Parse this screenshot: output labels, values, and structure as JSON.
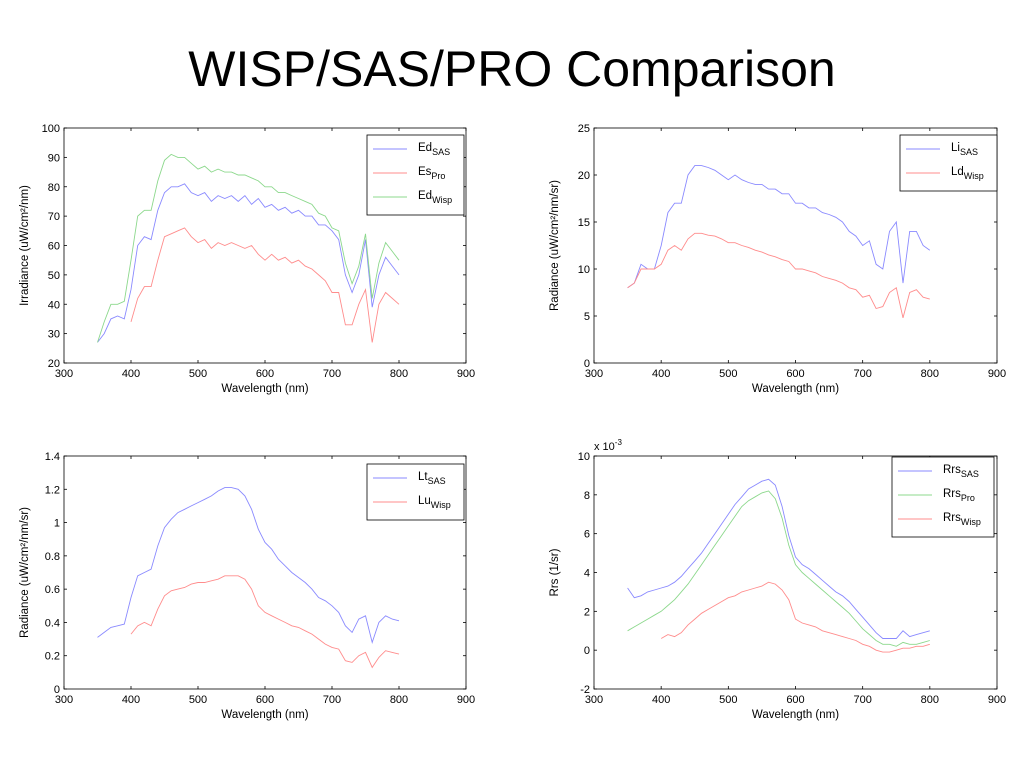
{
  "slide": {
    "title": "WISP/SAS/PRO Comparison"
  },
  "chart_data": [
    {
      "type": "line",
      "xlabel": "Wavelength (nm)",
      "ylabel": "Irradiance (uW/cm²/nm)",
      "xlim": [
        300,
        900
      ],
      "ylim": [
        20,
        100
      ],
      "xticks": [
        300,
        400,
        500,
        600,
        700,
        800,
        900
      ],
      "yticks": [
        20,
        30,
        40,
        50,
        60,
        70,
        80,
        90,
        100
      ],
      "legend_position": "top-right",
      "series": [
        {
          "name": "Ed",
          "sub": "SAS",
          "color": "#8a8aff",
          "x": [
            350,
            360,
            370,
            380,
            390,
            400,
            410,
            420,
            430,
            440,
            450,
            460,
            470,
            480,
            490,
            500,
            510,
            520,
            530,
            540,
            550,
            560,
            570,
            580,
            590,
            600,
            610,
            620,
            630,
            640,
            650,
            660,
            670,
            680,
            690,
            700,
            710,
            720,
            730,
            740,
            750,
            760,
            770,
            780,
            790,
            800
          ],
          "y": [
            27,
            30,
            35,
            36,
            35,
            45,
            60,
            63,
            62,
            72,
            78,
            80,
            80,
            81,
            78,
            77,
            78,
            75,
            77,
            76,
            77,
            75,
            77,
            74,
            76,
            73,
            74,
            72,
            73,
            71,
            72,
            70,
            70,
            67,
            67,
            65,
            62,
            50,
            44,
            50,
            62,
            39,
            50,
            56,
            53,
            50
          ]
        },
        {
          "name": "Es",
          "sub": "Pro",
          "color": "#ff8c8c",
          "x": [
            400,
            410,
            420,
            430,
            440,
            450,
            460,
            470,
            480,
            490,
            500,
            510,
            520,
            530,
            540,
            550,
            560,
            570,
            580,
            590,
            600,
            610,
            620,
            630,
            640,
            650,
            660,
            670,
            680,
            690,
            700,
            710,
            720,
            730,
            740,
            750,
            760,
            770,
            780,
            790,
            800
          ],
          "y": [
            34,
            42,
            46,
            46,
            55,
            63,
            64,
            65,
            66,
            63,
            61,
            62,
            59,
            61,
            60,
            61,
            60,
            59,
            60,
            57,
            55,
            57,
            55,
            56,
            54,
            55,
            53,
            52,
            50,
            48,
            44,
            44,
            33,
            33,
            40,
            45,
            27,
            40,
            44,
            42,
            40
          ]
        },
        {
          "name": "Ed",
          "sub": "Wisp",
          "color": "#8cd88c",
          "x": [
            350,
            360,
            370,
            380,
            390,
            400,
            410,
            420,
            430,
            440,
            450,
            460,
            470,
            480,
            490,
            500,
            510,
            520,
            530,
            540,
            550,
            560,
            570,
            580,
            590,
            600,
            610,
            620,
            630,
            640,
            650,
            660,
            670,
            680,
            690,
            700,
            710,
            720,
            730,
            740,
            750,
            760,
            770,
            780,
            790,
            800
          ],
          "y": [
            27,
            34,
            40,
            40,
            41,
            55,
            70,
            72,
            72,
            82,
            89,
            91,
            90,
            90,
            88,
            86,
            87,
            85,
            86,
            85,
            85,
            84,
            84,
            83,
            82,
            80,
            80,
            78,
            78,
            77,
            76,
            75,
            74,
            71,
            70,
            66,
            65,
            54,
            47,
            53,
            64,
            42,
            54,
            61,
            58,
            55
          ]
        }
      ]
    },
    {
      "type": "line",
      "xlabel": "Wavelength (nm)",
      "ylabel": "Radiance (uW/cm²/nm/sr)",
      "xlim": [
        300,
        900
      ],
      "ylim": [
        0,
        25
      ],
      "xticks": [
        300,
        400,
        500,
        600,
        700,
        800,
        900
      ],
      "yticks": [
        0,
        5,
        10,
        15,
        20,
        25
      ],
      "legend_position": "top-right",
      "series": [
        {
          "name": "Li",
          "sub": "SAS",
          "color": "#8a8aff",
          "x": [
            350,
            360,
            370,
            380,
            390,
            400,
            410,
            420,
            430,
            440,
            450,
            460,
            470,
            480,
            490,
            500,
            510,
            520,
            530,
            540,
            550,
            560,
            570,
            580,
            590,
            600,
            610,
            620,
            630,
            640,
            650,
            660,
            670,
            680,
            690,
            700,
            710,
            720,
            730,
            740,
            750,
            760,
            770,
            780,
            790,
            800
          ],
          "y": [
            8,
            8.5,
            10.5,
            10,
            10,
            12.5,
            16,
            17,
            17,
            20,
            21,
            21,
            20.8,
            20.5,
            20,
            19.5,
            20,
            19.5,
            19.2,
            19,
            19,
            18.5,
            18.5,
            18,
            18,
            17,
            17,
            16.5,
            16.5,
            16,
            15.8,
            15.5,
            15,
            14,
            13.5,
            12.5,
            13,
            10.5,
            10,
            14,
            15,
            8.5,
            14,
            14,
            12.5,
            12
          ]
        },
        {
          "name": "Ld",
          "sub": "Wisp",
          "color": "#ff8c8c",
          "x": [
            350,
            360,
            370,
            380,
            390,
            400,
            410,
            420,
            430,
            440,
            450,
            460,
            470,
            480,
            490,
            500,
            510,
            520,
            530,
            540,
            550,
            560,
            570,
            580,
            590,
            600,
            610,
            620,
            630,
            640,
            650,
            660,
            670,
            680,
            690,
            700,
            710,
            720,
            730,
            740,
            750,
            760,
            770,
            780,
            790,
            800
          ],
          "y": [
            8,
            8.5,
            10,
            10,
            10,
            10.5,
            12,
            12.5,
            12,
            13.2,
            13.8,
            13.8,
            13.6,
            13.5,
            13.2,
            12.8,
            12.8,
            12.5,
            12.3,
            12,
            11.8,
            11.5,
            11.3,
            11,
            10.8,
            10,
            10,
            9.8,
            9.6,
            9.2,
            9,
            8.8,
            8.5,
            8,
            7.8,
            7,
            7.2,
            5.8,
            6,
            7.5,
            8,
            4.8,
            7.5,
            7.8,
            7,
            6.8
          ]
        }
      ]
    },
    {
      "type": "line",
      "xlabel": "Wavelength (nm)",
      "ylabel": "Radiance (uW/cm²/nm/sr)",
      "xlim": [
        300,
        900
      ],
      "ylim": [
        0,
        1.4
      ],
      "xticks": [
        300,
        400,
        500,
        600,
        700,
        800,
        900
      ],
      "yticks": [
        0,
        0.2,
        0.4,
        0.6,
        0.8,
        1,
        1.2,
        1.4
      ],
      "legend_position": "top-right",
      "series": [
        {
          "name": "Lt",
          "sub": "SAS",
          "color": "#8a8aff",
          "x": [
            350,
            360,
            370,
            380,
            390,
            400,
            410,
            420,
            430,
            440,
            450,
            460,
            470,
            480,
            490,
            500,
            510,
            520,
            530,
            540,
            550,
            560,
            570,
            580,
            590,
            600,
            610,
            620,
            630,
            640,
            650,
            660,
            670,
            680,
            690,
            700,
            710,
            720,
            730,
            740,
            750,
            760,
            770,
            780,
            790,
            800
          ],
          "y": [
            0.31,
            0.34,
            0.37,
            0.38,
            0.39,
            0.55,
            0.68,
            0.7,
            0.72,
            0.86,
            0.97,
            1.02,
            1.06,
            1.08,
            1.1,
            1.12,
            1.14,
            1.16,
            1.19,
            1.21,
            1.21,
            1.2,
            1.16,
            1.08,
            0.96,
            0.88,
            0.84,
            0.78,
            0.74,
            0.7,
            0.67,
            0.64,
            0.6,
            0.55,
            0.53,
            0.5,
            0.46,
            0.38,
            0.34,
            0.42,
            0.44,
            0.28,
            0.4,
            0.44,
            0.42,
            0.41
          ]
        },
        {
          "name": "Lu",
          "sub": "Wisp",
          "color": "#ff8c8c",
          "x": [
            400,
            410,
            420,
            430,
            440,
            450,
            460,
            470,
            480,
            490,
            500,
            510,
            520,
            530,
            540,
            550,
            560,
            570,
            580,
            590,
            600,
            610,
            620,
            630,
            640,
            650,
            660,
            670,
            680,
            690,
            700,
            710,
            720,
            730,
            740,
            750,
            760,
            770,
            780,
            790,
            800
          ],
          "y": [
            0.33,
            0.38,
            0.4,
            0.38,
            0.48,
            0.56,
            0.59,
            0.6,
            0.61,
            0.63,
            0.64,
            0.64,
            0.65,
            0.66,
            0.68,
            0.68,
            0.68,
            0.66,
            0.6,
            0.5,
            0.46,
            0.44,
            0.42,
            0.4,
            0.38,
            0.37,
            0.35,
            0.33,
            0.3,
            0.27,
            0.25,
            0.24,
            0.17,
            0.16,
            0.2,
            0.22,
            0.13,
            0.19,
            0.23,
            0.22,
            0.21
          ]
        }
      ]
    },
    {
      "type": "line",
      "xlabel": "Wavelength (nm)",
      "ylabel": "Rrs (1/sr)",
      "multiplier": "x 10",
      "multiplier_exp": "-3",
      "xlim": [
        300,
        900
      ],
      "ylim": [
        -2,
        10
      ],
      "xticks": [
        300,
        400,
        500,
        600,
        700,
        800,
        900
      ],
      "yticks": [
        -2,
        0,
        2,
        4,
        6,
        8,
        10
      ],
      "legend_position": "top-right",
      "series": [
        {
          "name": "Rrs",
          "sub": "SAS",
          "color": "#8a8aff",
          "x": [
            350,
            360,
            370,
            380,
            390,
            400,
            410,
            420,
            430,
            440,
            450,
            460,
            470,
            480,
            490,
            500,
            510,
            520,
            530,
            540,
            550,
            560,
            570,
            580,
            590,
            600,
            610,
            620,
            630,
            640,
            650,
            660,
            670,
            680,
            690,
            700,
            710,
            720,
            730,
            740,
            750,
            760,
            770,
            780,
            790,
            800
          ],
          "y": [
            3.2,
            2.7,
            2.8,
            3.0,
            3.1,
            3.2,
            3.3,
            3.5,
            3.8,
            4.2,
            4.6,
            5.0,
            5.5,
            6.0,
            6.5,
            7.0,
            7.5,
            7.9,
            8.3,
            8.5,
            8.7,
            8.8,
            8.5,
            7.4,
            5.9,
            4.8,
            4.4,
            4.2,
            3.9,
            3.6,
            3.3,
            3.0,
            2.8,
            2.5,
            2.1,
            1.7,
            1.3,
            0.9,
            0.6,
            0.6,
            0.6,
            1.0,
            0.7,
            0.8,
            0.9,
            1.0
          ]
        },
        {
          "name": "Rrs",
          "sub": "Pro",
          "color": "#8cd88c",
          "x": [
            350,
            360,
            370,
            380,
            390,
            400,
            410,
            420,
            430,
            440,
            450,
            460,
            470,
            480,
            490,
            500,
            510,
            520,
            530,
            540,
            550,
            560,
            570,
            580,
            590,
            600,
            610,
            620,
            630,
            640,
            650,
            660,
            670,
            680,
            690,
            700,
            710,
            720,
            730,
            740,
            750,
            760,
            770,
            780,
            790,
            800
          ],
          "y": [
            1.0,
            1.2,
            1.4,
            1.6,
            1.8,
            2.0,
            2.3,
            2.6,
            3.0,
            3.4,
            3.9,
            4.4,
            4.9,
            5.4,
            5.9,
            6.4,
            6.9,
            7.4,
            7.7,
            7.9,
            8.1,
            8.2,
            7.8,
            6.8,
            5.4,
            4.4,
            4.0,
            3.7,
            3.4,
            3.1,
            2.8,
            2.5,
            2.2,
            1.9,
            1.5,
            1.1,
            0.8,
            0.5,
            0.3,
            0.3,
            0.2,
            0.4,
            0.3,
            0.3,
            0.4,
            0.5
          ]
        },
        {
          "name": "Rrs",
          "sub": "Wisp",
          "color": "#ff8c8c",
          "x": [
            400,
            410,
            420,
            430,
            440,
            450,
            460,
            470,
            480,
            490,
            500,
            510,
            520,
            530,
            540,
            550,
            560,
            570,
            580,
            590,
            600,
            610,
            620,
            630,
            640,
            650,
            660,
            670,
            680,
            690,
            700,
            710,
            720,
            730,
            740,
            750,
            760,
            770,
            780,
            790,
            800
          ],
          "y": [
            0.6,
            0.8,
            0.7,
            0.9,
            1.3,
            1.6,
            1.9,
            2.1,
            2.3,
            2.5,
            2.7,
            2.8,
            3.0,
            3.1,
            3.2,
            3.3,
            3.5,
            3.4,
            3.1,
            2.6,
            1.6,
            1.4,
            1.3,
            1.2,
            1.0,
            0.9,
            0.8,
            0.7,
            0.6,
            0.5,
            0.3,
            0.2,
            0.0,
            -0.1,
            -0.1,
            0.0,
            0.1,
            0.1,
            0.2,
            0.2,
            0.3
          ]
        }
      ]
    }
  ]
}
